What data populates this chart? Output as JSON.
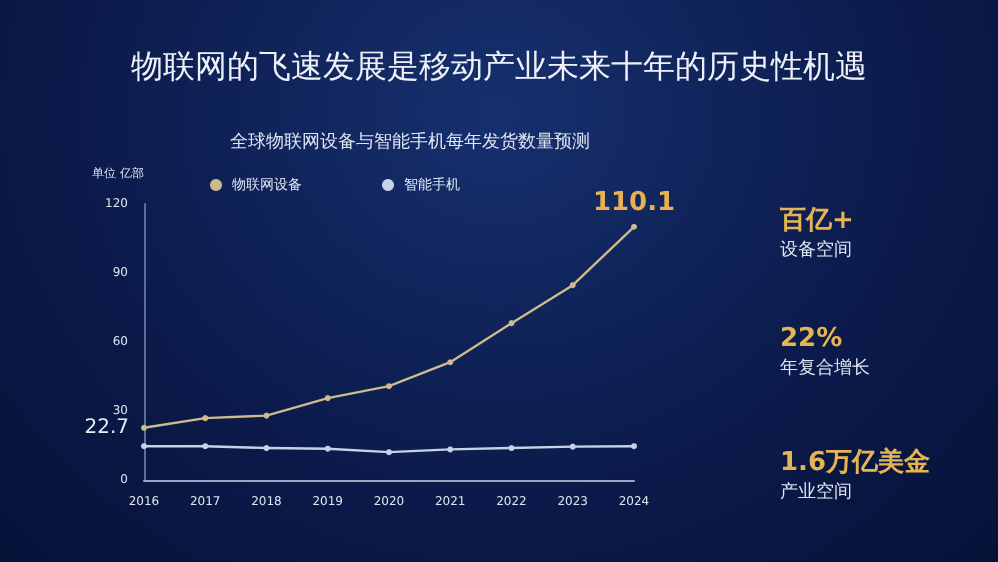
{
  "chart_data": {
    "type": "line",
    "title": "物联网的飞速发展是移动产业未来十年的历史性机遇",
    "subtitle": "全球物联网设备与智能手机每年发货数量预测",
    "ylabel": "单位 亿部",
    "categories": [
      "2016",
      "2017",
      "2018",
      "2019",
      "2020",
      "2021",
      "2022",
      "2023",
      "2024"
    ],
    "series": [
      {
        "name": "物联网设备",
        "color": "#cdbb8c",
        "values": [
          22.7,
          26.9,
          28,
          35.6,
          40.8,
          51.2,
          68.2,
          84.7,
          110.1
        ],
        "value_labels": [
          "22.7",
          null,
          null,
          null,
          null,
          null,
          null,
          null,
          "110.1"
        ]
      },
      {
        "name": "智能手机",
        "color": "#c8d2e6",
        "values": [
          14.7,
          14.7,
          13.9,
          13.6,
          12.1,
          13.3,
          13.9,
          14.5,
          14.7
        ]
      }
    ],
    "ylim": [
      0,
      120
    ],
    "yticks": [
      0,
      30,
      60,
      90,
      120
    ],
    "grid": false,
    "legend": "top",
    "marker": "circle",
    "line_style": "solid",
    "annotations": [
      "百亿+",
      "设备空间",
      "22%",
      "年复合增长",
      "1.6万亿美金",
      "产业空间"
    ]
  }
}
